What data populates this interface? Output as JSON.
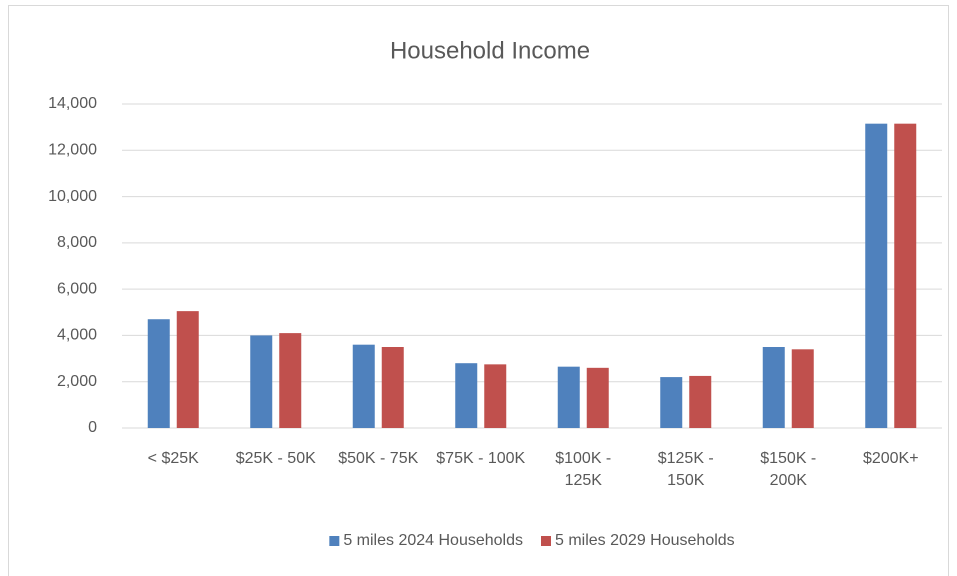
{
  "chart_data": {
    "type": "bar",
    "title": "Household Income",
    "categories": [
      "< $25K",
      "$25K - 50K",
      "$50K - 75K",
      "$75K - 100K",
      "$100K - 125K",
      "$125K - 150K",
      "$150K - 200K",
      "$200K+"
    ],
    "series": [
      {
        "name": "5 miles 2024 Households",
        "color": "#4f81bd",
        "values": [
          4700,
          4000,
          3600,
          2800,
          2650,
          2200,
          3500,
          13150
        ]
      },
      {
        "name": "5 miles 2029 Households",
        "color": "#c0504d",
        "values": [
          5050,
          4100,
          3500,
          2750,
          2600,
          2250,
          3400,
          13150
        ]
      }
    ],
    "ylim": [
      0,
      14000
    ],
    "yticks": [
      0,
      {
        "value": 2000,
        "label": "2,000"
      },
      {
        "value": 4000,
        "label": "4,000"
      },
      {
        "value": 6000,
        "label": "6,000"
      },
      {
        "value": 8000,
        "label": "8,000"
      },
      {
        "value": 10000,
        "label": "10,000"
      },
      {
        "value": 12000,
        "label": "12,000"
      },
      {
        "value": 14000,
        "label": "14,000"
      }
    ],
    "grid": true,
    "legend": "bottom"
  }
}
